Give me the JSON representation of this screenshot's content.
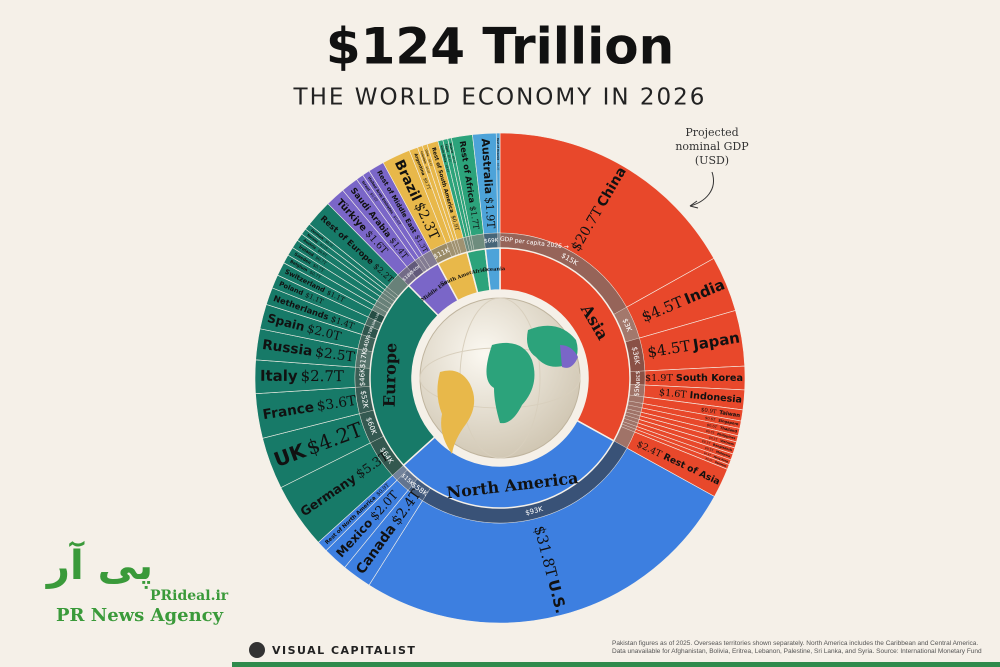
{
  "chart_data": {
    "type": "sunburst",
    "title": "$124 Trillion",
    "subtitle": "THE WORLD ECONOMY IN 2026",
    "annotation": "Projected nominal GDP (USD)",
    "per_capita_note": "GDP per capita 2026 →",
    "regions": [
      {
        "name": "Asia",
        "color": "#e8482b",
        "label_color": "#111111",
        "countries": [
          {
            "name": "China",
            "value": 20.7,
            "value_label": "$20.7T",
            "per_capita": 15,
            "per_capita_label": "$15K"
          },
          {
            "name": "India",
            "value": 4.5,
            "value_label": "$4.5T",
            "per_capita": 3,
            "per_capita_label": "$3K"
          },
          {
            "name": "Japan",
            "value": 4.5,
            "value_label": "$4.5T",
            "per_capita": 36,
            "per_capita_label": "$36K"
          },
          {
            "name": "South Korea",
            "value": 1.9,
            "value_label": "$1.9T",
            "per_capita": 38,
            "per_capita_label": "$38K"
          },
          {
            "name": "Indonesia",
            "value": 1.6,
            "value_label": "$1.6T",
            "per_capita": 5,
            "per_capita_label": "$5K"
          },
          {
            "name": "Taiwan",
            "value": 0.9,
            "value_label": "$0.9T"
          },
          {
            "name": "Singapore",
            "value": 0.6,
            "value_label": "$0.6T"
          },
          {
            "name": "Thailand",
            "value": 0.6,
            "value_label": "$0.6T"
          },
          {
            "name": "Philippines",
            "value": 0.5,
            "value_label": "$0.5T"
          },
          {
            "name": "Vietnam",
            "value": 0.5,
            "value_label": "$0.5T"
          },
          {
            "name": "Bangladesh",
            "value": 0.5,
            "value_label": "$0.5T"
          },
          {
            "name": "Malaysia",
            "value": 0.5,
            "value_label": "$0.5T"
          },
          {
            "name": "Hong Kong",
            "value": 0.4,
            "value_label": "$0.4T"
          },
          {
            "name": "Pakistan",
            "value": 0.4,
            "value_label": "$0.4T"
          },
          {
            "name": "Rest of Asia",
            "value": 2.4,
            "value_label": "$2.4T"
          }
        ]
      },
      {
        "name": "North America",
        "color": "#3d7fe0",
        "label_color": "#111111",
        "countries": [
          {
            "name": "U.S.",
            "value": 31.8,
            "value_label": "$31.8T",
            "per_capita": 93,
            "per_capita_label": "$93K"
          },
          {
            "name": "Canada",
            "value": 2.4,
            "value_label": "$2.4T",
            "per_capita": 58,
            "per_capita_label": "$58K"
          },
          {
            "name": "Mexico",
            "value": 2.0,
            "value_label": "$2.0T",
            "per_capita": 15,
            "per_capita_label": "$15K"
          },
          {
            "name": "Rest of North America",
            "value": 0.9,
            "value_label": "$0.9T"
          }
        ]
      },
      {
        "name": "Europe",
        "color": "#177a68",
        "label_color": "#111111",
        "countries": [
          {
            "name": "Germany",
            "value": 5.3,
            "value_label": "$5.3T",
            "per_capita": 64,
            "per_capita_label": "$64K"
          },
          {
            "name": "UK",
            "value": 4.2,
            "value_label": "$4.2T",
            "per_capita": 60,
            "per_capita_label": "$60K"
          },
          {
            "name": "France",
            "value": 3.6,
            "value_label": "$3.6T",
            "per_capita": 52,
            "per_capita_label": "$52K"
          },
          {
            "name": "Italy",
            "value": 2.7,
            "value_label": "$2.7T",
            "per_capita": 46,
            "per_capita_label": "$46K"
          },
          {
            "name": "Russia",
            "value": 2.5,
            "value_label": "$2.5T",
            "per_capita": 17,
            "per_capita_label": "$17K"
          },
          {
            "name": "Spain",
            "value": 2.0,
            "value_label": "$2.0T",
            "per_capita": 40,
            "per_capita_label": "$40K"
          },
          {
            "name": "Netherlands",
            "value": 1.4,
            "value_label": "$1.4T",
            "per_capita": 78,
            "per_capita_label": "$78K"
          },
          {
            "name": "Poland",
            "value": 1.1,
            "value_label": "$1.1T",
            "per_capita": 30,
            "per_capita_label": "$30K"
          },
          {
            "name": "Switzerland",
            "value": 1.1,
            "value_label": "$1.1T",
            "per_capita": 118,
            "per_capita_label": "$118K"
          },
          {
            "name": "Belgium",
            "value": 0.7,
            "value_label": "$0.7T"
          },
          {
            "name": "Sweden",
            "value": 0.7,
            "value_label": "$0.7T"
          },
          {
            "name": "Ireland",
            "value": 0.7,
            "value_label": "$0.7T"
          },
          {
            "name": "Austria",
            "value": 0.6,
            "value_label": "$0.6T"
          },
          {
            "name": "Norway",
            "value": 0.5,
            "value_label": "$0.5T"
          },
          {
            "name": "Denmark",
            "value": 0.5,
            "value_label": "$0.5T"
          },
          {
            "name": "Rest of Europe",
            "value": 2.2,
            "value_label": "$2.2T"
          }
        ]
      },
      {
        "name": "Middle East",
        "color": "#7a66c8",
        "label_color": "#111111",
        "countries": [
          {
            "name": "Türkiye",
            "value": 1.6,
            "value_label": "$1.6T",
            "per_capita": 18,
            "per_capita_label": "$18K"
          },
          {
            "name": "Saudi Arabia",
            "value": 1.4,
            "value_label": "$1.4T",
            "per_capita": 40,
            "per_capita_label": "$40K"
          },
          {
            "name": "Israel",
            "value": 0.6,
            "value_label": "$0.6T"
          },
          {
            "name": "United Arab Emirates",
            "value": 0.6,
            "value_label": "$0.6T"
          },
          {
            "name": "Rest of Middle East",
            "value": 1.3,
            "value_label": "$1.3T"
          }
        ]
      },
      {
        "name": "South America",
        "color": "#e8b84a",
        "label_color": "#111111",
        "countries": [
          {
            "name": "Brazil",
            "value": 2.3,
            "value_label": "$2.3T",
            "per_capita": 11,
            "per_capita_label": "$11K"
          },
          {
            "name": "Argentina",
            "value": 0.7,
            "value_label": "$0.7T"
          },
          {
            "name": "Colombia",
            "value": 0.4,
            "value_label": "$0.4T"
          },
          {
            "name": "Chile",
            "value": 0.4,
            "value_label": "$0.4T"
          },
          {
            "name": "Rest of South America",
            "value": 0.9,
            "value_label": "$0.9T"
          }
        ]
      },
      {
        "name": "Africa",
        "color": "#2ca37b",
        "label_color": "#111111",
        "countries": [
          {
            "name": "South Africa",
            "value": 0.4,
            "value_label": "$0.4T"
          },
          {
            "name": "Egypt",
            "value": 0.4,
            "value_label": "$0.4T"
          },
          {
            "name": "Nigeria",
            "value": 0.3,
            "value_label": "$0.3T"
          },
          {
            "name": "Rest of Africa",
            "value": 1.7,
            "value_label": "$1.7T"
          }
        ]
      },
      {
        "name": "Oceania",
        "color": "#4da3d9",
        "label_color": "#111111",
        "countries": [
          {
            "name": "Australia",
            "value": 1.9,
            "value_label": "$1.9T",
            "per_capita": 69,
            "per_capita_label": "$69K"
          },
          {
            "name": "Rest of Oceania",
            "value": 0.3,
            "value_label": "$0.3T"
          }
        ]
      }
    ]
  },
  "footer": {
    "brand": "VISUAL CAPITALIST",
    "note": "Pakistan figures as of 2025. Overseas territories shown separately. North America includes the Caribbean and Central America. Data unavailable for Afghanistan, Bolivia, Eritrea, Lebanon, Palestine, Sri Lanka, and Syria. Source: International Monetary Fund"
  },
  "watermark": {
    "logo": "پی آر",
    "site": "PRideal.ir",
    "agency": "PR News Agency"
  }
}
